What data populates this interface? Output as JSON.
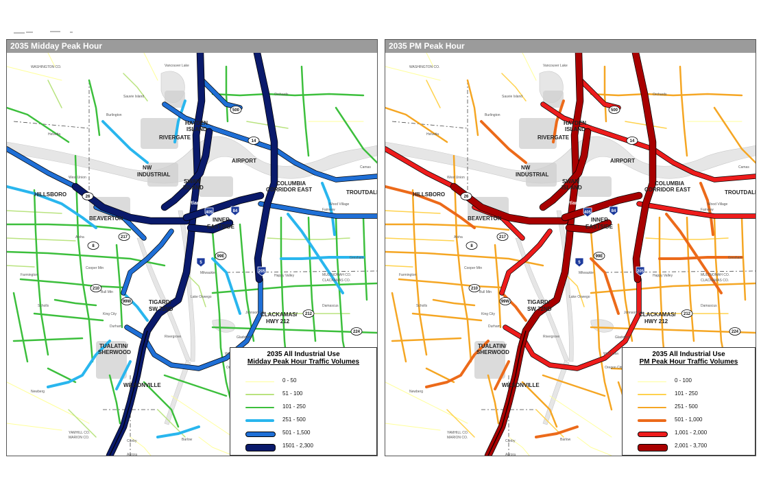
{
  "page": {
    "background": "#ffffff"
  },
  "panels": [
    {
      "title": "2035 Midday Peak Hour",
      "legend": {
        "title_line1": "2035 All Industrial Use",
        "title_line2": "Midday Peak Hour Traffic Volumes",
        "items": [
          {
            "label": "0 - 50",
            "color": "#ffff99",
            "weight": 1
          },
          {
            "label": "51 - 100",
            "color": "#b9e37f",
            "weight": 1.5
          },
          {
            "label": "101 - 250",
            "color": "#3cbf3c",
            "weight": 2.5
          },
          {
            "label": "251 - 500",
            "color": "#29b6ee",
            "weight": 4
          },
          {
            "label": "501 - 1,500",
            "color": "#1f6fd6",
            "weight": 6
          },
          {
            "label": "1501 - 2,300",
            "color": "#0a1a6b",
            "weight": 9
          }
        ]
      },
      "palette": {
        "minor": "#ffff99",
        "local": "#b9e37f",
        "arterial": "#3cbf3c",
        "collector": "#29b6ee",
        "major": "#1f6fd6",
        "freeway": "#0a1a6b"
      }
    },
    {
      "title": "2035 PM Peak Hour",
      "legend": {
        "title_line1": "2035 All Industrial Use",
        "title_line2": "PM Peak Hour Traffic Volumes",
        "items": [
          {
            "label": "0 - 100",
            "color": "#ffff99",
            "weight": 1
          },
          {
            "label": "101 - 250",
            "color": "#ffd24d",
            "weight": 1.5
          },
          {
            "label": "251 - 500",
            "color": "#f5a623",
            "weight": 2.5
          },
          {
            "label": "501 - 1,000",
            "color": "#ec6a1a",
            "weight": 4
          },
          {
            "label": "1,001 - 2,000",
            "color": "#ee1c1c",
            "weight": 6
          },
          {
            "label": "2,001 - 3,700",
            "color": "#a80000",
            "weight": 9
          }
        ]
      },
      "palette": {
        "minor": "#ffff99",
        "local": "#ffd24d",
        "arterial": "#f5a623",
        "collector": "#ec6a1a",
        "major": "#ee1c1c",
        "freeway": "#a80000"
      }
    }
  ],
  "map_labels": {
    "hayden": "HAYDEN",
    "island": "ISLAND",
    "rivergate": "RIVERGATE",
    "airport": "AIRPORT",
    "nw": "NW",
    "industrial": "INDUSTRIAL",
    "swan": "SWAN",
    "swan_island": "ISLAND",
    "columbia": "COLUMBIA",
    "corridor_east": "CORRIDOR EAST",
    "troutdale": "TROUTDALE",
    "hillsboro": "HILLSBORO",
    "beaverton": "BEAVERTON",
    "inner": "INNER",
    "eastside": "EASTSIDE",
    "tigard": "TIGARD/",
    "sw72nd": "SW 72ND",
    "clackamas": "CLACKAMAS/",
    "hwy212": "HWY 212",
    "tualatin": "TUALATIN/",
    "sherwood": "SHERWOOD",
    "wilsonville": "WILSONVILLE",
    "portland": "Portland"
  },
  "small_labels": [
    "Burlington",
    "Helvetia",
    "West Union",
    "Farmington",
    "Scholls",
    "Newberg",
    "Aloha",
    "Cooper Mtn",
    "Bull Mtn",
    "King City",
    "Lake Oswego",
    "Milwaukie",
    "Happy Valley",
    "Damascus",
    "Gresham",
    "Camas",
    "Orchards",
    "Vancouver Lake",
    "Sauvie Island",
    "Canby",
    "Aurora",
    "Barlow",
    "West Linn",
    "Oregon City",
    "Gladstone",
    "Johnson City",
    "Durham",
    "Rivergrove",
    "Wood Village",
    "Fairview",
    "MULTNOMAH CO.",
    "CLACKAMAS CO.",
    "WASHINGTON CO.",
    "YAMHILL CO.",
    "MARION CO."
  ],
  "shields": [
    "5",
    "205",
    "405",
    "84",
    "26",
    "217",
    "8",
    "99E",
    "99W",
    "210",
    "212",
    "224",
    "14",
    "500"
  ]
}
